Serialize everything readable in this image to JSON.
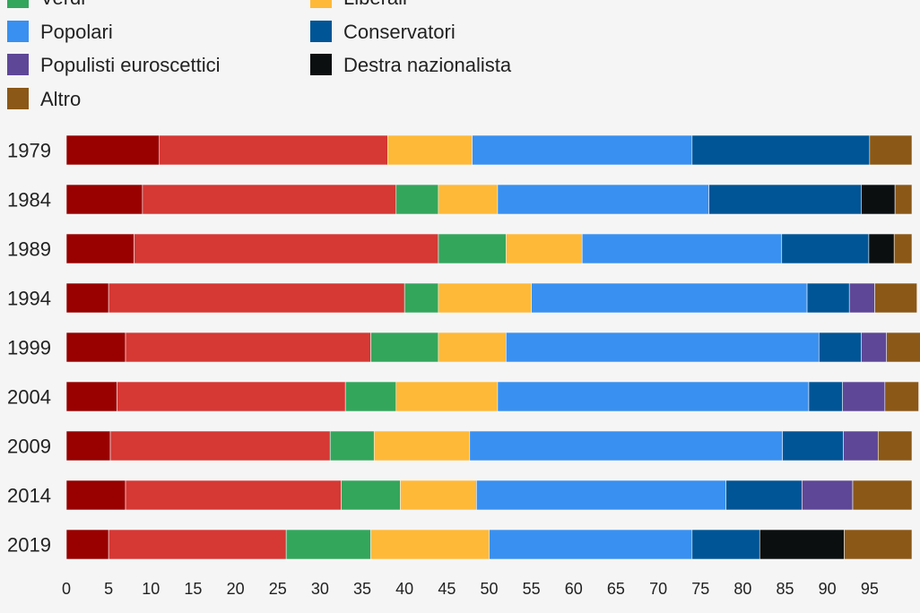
{
  "chart_data": {
    "type": "bar",
    "orientation": "horizontal",
    "stacked": true,
    "categories": [
      "1979",
      "1984",
      "1989",
      "1994",
      "1999",
      "2004",
      "2009",
      "2014",
      "2019"
    ],
    "series": [
      {
        "name": "",
        "color": "#990000",
        "values": [
          11,
          9,
          8,
          5,
          7,
          6,
          5.2,
          7,
          5
        ]
      },
      {
        "name": "",
        "color": "#d63834",
        "values": [
          27,
          30,
          36,
          35,
          29,
          27,
          26,
          25.5,
          21
        ]
      },
      {
        "name": "Verdi",
        "color": "#33a65c",
        "values": [
          0,
          5,
          8,
          4,
          8,
          6,
          5.2,
          7,
          10
        ]
      },
      {
        "name": "Liberali",
        "color": "#ffb938",
        "values": [
          10,
          7,
          9,
          11,
          8,
          12,
          11.3,
          9,
          14
        ]
      },
      {
        "name": "Popolari",
        "color": "#3990f0",
        "values": [
          26,
          25,
          23.6,
          32.6,
          37,
          36.8,
          37,
          29.5,
          24
        ]
      },
      {
        "name": "Conservatori",
        "color": "#005596",
        "values": [
          21,
          18,
          10.3,
          5,
          5,
          4,
          7.2,
          9,
          8
        ]
      },
      {
        "name": "Populisti euroscettici",
        "color": "#5e4797",
        "values": [
          0,
          0,
          0,
          3,
          3,
          5,
          4.1,
          6,
          0
        ]
      },
      {
        "name": "Destra nazionalista",
        "color": "#0b0f10",
        "values": [
          0,
          4,
          3,
          0,
          0,
          0,
          0,
          0,
          10
        ]
      },
      {
        "name": "Altro",
        "color": "#8b5817",
        "values": [
          5,
          2,
          2.1,
          5,
          4,
          4,
          4,
          7,
          8
        ]
      }
    ],
    "xlim": [
      0,
      100
    ],
    "xticks": [
      0,
      5,
      10,
      15,
      20,
      25,
      30,
      35,
      40,
      45,
      50,
      55,
      60,
      65,
      70,
      75,
      80,
      85,
      90,
      95
    ],
    "legend": "top",
    "grid": false
  }
}
